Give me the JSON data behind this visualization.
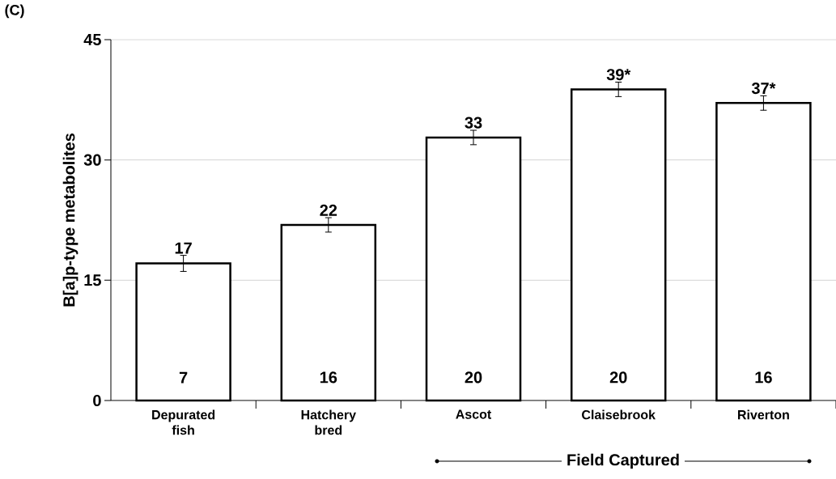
{
  "chart_data": {
    "type": "bar",
    "ylabel": "B[a]p-type metabolites",
    "categories": [
      "Depurated fish",
      "Hatchery bred",
      "Ascot",
      "Claisebrook",
      "Riverton"
    ],
    "values": [
      17.1,
      21.9,
      32.8,
      38.8,
      37.1
    ],
    "errors": [
      1.0,
      0.9,
      0.9,
      0.9,
      0.9
    ],
    "value_labels": [
      "17",
      "22",
      "33",
      "39*",
      "37*"
    ],
    "color": "#ffffff",
    "ylim": [
      0,
      45
    ],
    "yticks": [
      0,
      15,
      30,
      45
    ],
    "grid": "y",
    "annotations": [
      "(C)",
      "Field Captured",
      "7",
      "16",
      "20",
      "20",
      "16"
    ]
  }
}
